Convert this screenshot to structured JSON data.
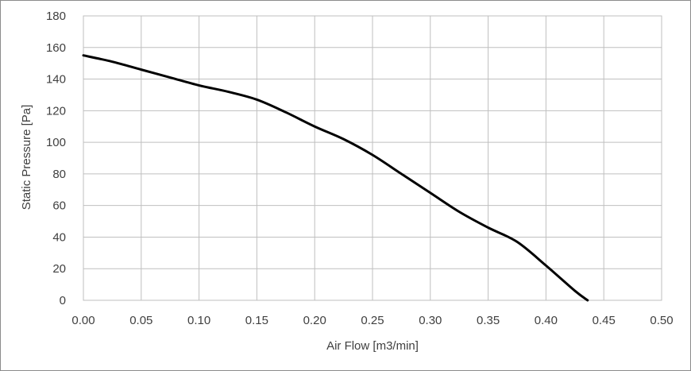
{
  "chart_data": {
    "type": "line",
    "xlabel": "Air Flow [m3/min]",
    "ylabel": "Static Pressure [Pa]",
    "xlim": [
      0.0,
      0.5
    ],
    "ylim": [
      0,
      180
    ],
    "x_ticks": [
      "0.00",
      "0.05",
      "0.10",
      "0.15",
      "0.20",
      "0.25",
      "0.30",
      "0.35",
      "0.40",
      "0.45",
      "0.50"
    ],
    "y_ticks": [
      "0",
      "20",
      "40",
      "60",
      "80",
      "100",
      "120",
      "140",
      "160",
      "180"
    ],
    "grid": true,
    "legend": "none",
    "series": [
      {
        "color": "#000000",
        "points": [
          [
            0.0,
            155
          ],
          [
            0.025,
            151
          ],
          [
            0.05,
            146
          ],
          [
            0.075,
            141
          ],
          [
            0.1,
            136
          ],
          [
            0.125,
            132
          ],
          [
            0.15,
            127
          ],
          [
            0.175,
            119
          ],
          [
            0.2,
            110
          ],
          [
            0.225,
            102
          ],
          [
            0.25,
            92
          ],
          [
            0.275,
            80
          ],
          [
            0.3,
            68
          ],
          [
            0.325,
            56
          ],
          [
            0.35,
            46
          ],
          [
            0.375,
            37
          ],
          [
            0.4,
            22
          ],
          [
            0.425,
            6
          ],
          [
            0.436,
            0
          ]
        ]
      }
    ],
    "colors": {
      "grid": "#bfbfbf",
      "plot_border": "#bfbfbf",
      "frame": "#8c8c8c",
      "text": "#404040"
    }
  }
}
